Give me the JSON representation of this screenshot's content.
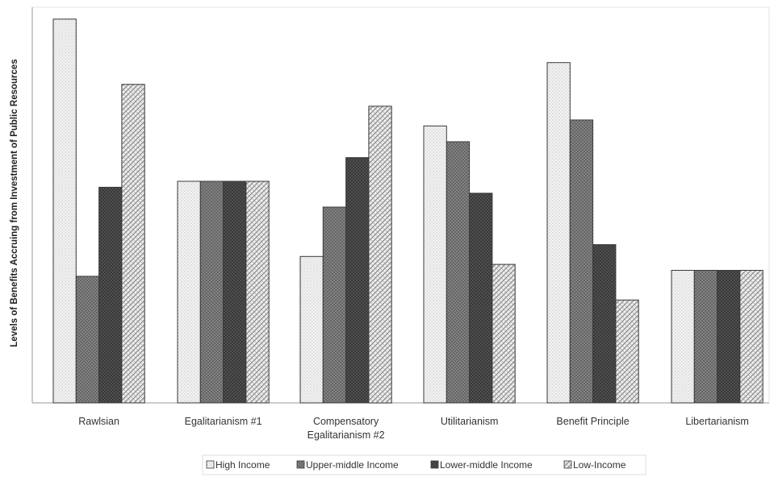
{
  "chart_data": {
    "type": "bar",
    "title": "",
    "xlabel": "",
    "ylabel": "Levels of Benefits Accruing from Investment of Public Resources",
    "ylim": [
      0,
      100
    ],
    "y_ticks_shown": false,
    "grid": false,
    "legend_position": "bottom",
    "categories": [
      [
        "Rawlsian"
      ],
      [
        "Egalitarianism #1"
      ],
      [
        "Compensatory",
        "Egalitarianism #2"
      ],
      [
        "Utilitarianism"
      ],
      [
        "Benefit Principle"
      ],
      [
        "Libertarianism"
      ]
    ],
    "series": [
      {
        "name": "High Income",
        "pattern": "dots-light",
        "values": [
          97,
          56,
          37,
          70,
          86,
          33.5
        ]
      },
      {
        "name": "Upper-middle Income",
        "pattern": "crosshatch-medium",
        "values": [
          32,
          56,
          49.5,
          66,
          71.5,
          33.5
        ]
      },
      {
        "name": "Lower-middle Income",
        "pattern": "crosshatch-dark",
        "values": [
          54.5,
          56,
          62,
          53,
          40,
          33.5
        ]
      },
      {
        "name": "Low-Income",
        "pattern": "diagonal-check",
        "values": [
          80.5,
          56,
          75,
          35,
          26,
          33.5
        ]
      }
    ]
  }
}
